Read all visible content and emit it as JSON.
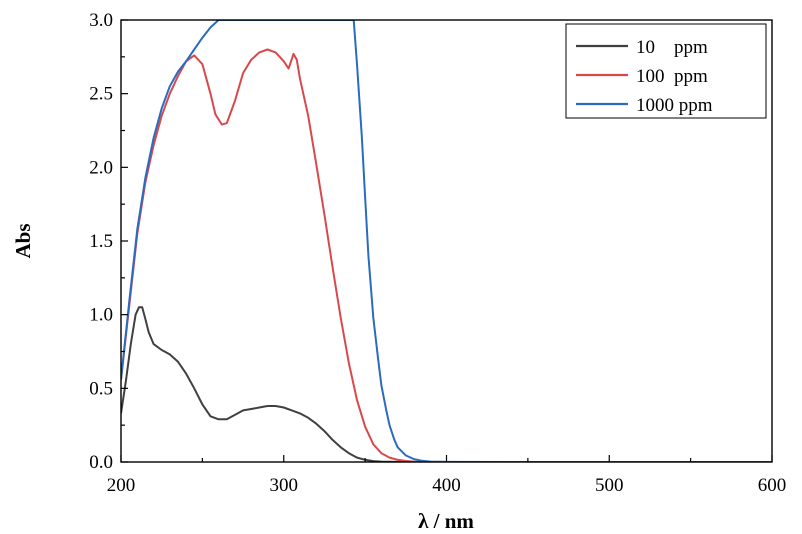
{
  "chart_data": {
    "type": "line",
    "title": "",
    "xlabel": "λ / nm",
    "ylabel": "Abs",
    "xlim": [
      200,
      600
    ],
    "ylim": [
      0,
      3.0
    ],
    "x_ticks": [
      "200",
      "300",
      "400",
      "500",
      "600"
    ],
    "y_ticks": [
      "0.0",
      "0.5",
      "1.0",
      "1.5",
      "2.0",
      "2.5",
      "3.0"
    ],
    "grid": false,
    "legend_position": "top-right",
    "series": [
      {
        "name": "10    ppm",
        "color": "#404040",
        "x": [
          200,
          203,
          206,
          209,
          211,
          213,
          215,
          217,
          220,
          225,
          230,
          235,
          240,
          245,
          250,
          255,
          260,
          265,
          270,
          275,
          280,
          285,
          290,
          295,
          300,
          305,
          310,
          315,
          320,
          325,
          330,
          335,
          340,
          345,
          350,
          355,
          360,
          370,
          380,
          400,
          450,
          500,
          550,
          600
        ],
        "y": [
          0.33,
          0.55,
          0.8,
          1.0,
          1.05,
          1.05,
          0.97,
          0.88,
          0.8,
          0.76,
          0.73,
          0.68,
          0.6,
          0.5,
          0.39,
          0.31,
          0.29,
          0.29,
          0.32,
          0.35,
          0.36,
          0.37,
          0.38,
          0.38,
          0.37,
          0.35,
          0.33,
          0.3,
          0.26,
          0.21,
          0.15,
          0.1,
          0.06,
          0.03,
          0.015,
          0.006,
          0.003,
          0.001,
          0,
          0,
          0,
          0,
          0,
          0
        ]
      },
      {
        "name": "100  ppm",
        "color": "#d9484a",
        "x": [
          200,
          205,
          210,
          215,
          220,
          225,
          230,
          235,
          240,
          245,
          250,
          255,
          258,
          262,
          265,
          270,
          275,
          280,
          285,
          290,
          295,
          300,
          303,
          306,
          308,
          310,
          315,
          320,
          325,
          330,
          335,
          340,
          345,
          350,
          355,
          360,
          365,
          370,
          375,
          380,
          390,
          400,
          450,
          500,
          550,
          600
        ],
        "y": [
          0.56,
          1.05,
          1.55,
          1.9,
          2.15,
          2.35,
          2.5,
          2.62,
          2.72,
          2.76,
          2.7,
          2.5,
          2.36,
          2.29,
          2.3,
          2.45,
          2.64,
          2.73,
          2.78,
          2.8,
          2.78,
          2.72,
          2.67,
          2.77,
          2.73,
          2.6,
          2.35,
          2.02,
          1.68,
          1.32,
          0.98,
          0.67,
          0.42,
          0.24,
          0.12,
          0.06,
          0.03,
          0.015,
          0.007,
          0.003,
          0.001,
          0,
          0,
          0,
          0,
          0
        ]
      },
      {
        "name": "1000 ppm",
        "color": "#2a6bbf",
        "x": [
          200,
          205,
          210,
          215,
          220,
          225,
          230,
          235,
          240,
          245,
          250,
          255,
          260,
          343,
          345,
          348,
          350,
          352,
          355,
          358,
          360,
          363,
          365,
          368,
          370,
          375,
          380,
          385,
          390,
          400,
          450,
          500,
          550,
          600
        ],
        "y": [
          0.56,
          1.08,
          1.58,
          1.93,
          2.2,
          2.4,
          2.55,
          2.65,
          2.72,
          2.8,
          2.88,
          2.95,
          3.0,
          3.0,
          2.7,
          2.2,
          1.8,
          1.4,
          0.98,
          0.7,
          0.52,
          0.35,
          0.25,
          0.15,
          0.1,
          0.045,
          0.02,
          0.008,
          0.003,
          0.001,
          0,
          0,
          0,
          0
        ]
      }
    ]
  }
}
